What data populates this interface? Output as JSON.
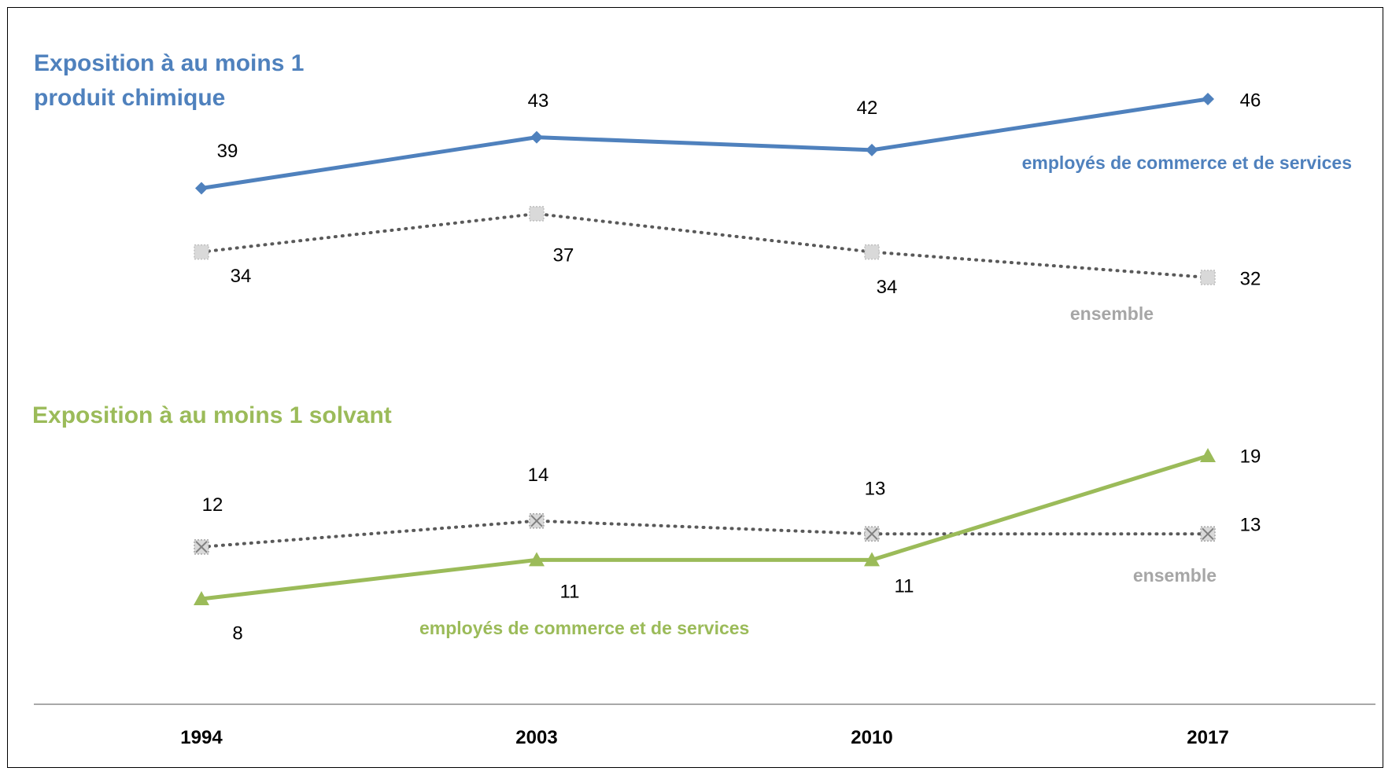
{
  "chart_data": {
    "type": "line",
    "x": [
      "1994",
      "2003",
      "2010",
      "2017"
    ],
    "panels": [
      {
        "title": "Exposition à au moins 1 produit chimique",
        "title_lines": [
          "Exposition à au moins 1",
          "produit chimique"
        ],
        "title_color": "#4F81BD",
        "series": [
          {
            "name": "employés de commerce et de services",
            "values": [
              39,
              43,
              42,
              46
            ],
            "color": "#4F81BD",
            "line_style": "solid",
            "marker": "diamond"
          },
          {
            "name": "ensemble",
            "values": [
              34,
              37,
              34,
              32
            ],
            "color": "#A6A6A6",
            "line_style": "dotted",
            "marker": "square"
          }
        ]
      },
      {
        "title": "Exposition à au moins 1 solvant",
        "title_lines": [
          "Exposition à au moins 1 solvant"
        ],
        "title_color": "#9BBB59",
        "series": [
          {
            "name": "ensemble",
            "values": [
              12,
              14,
              13,
              13
            ],
            "color": "#A6A6A6",
            "line_style": "dotted",
            "marker": "square-x"
          },
          {
            "name": "employés de commerce et de services",
            "values": [
              8,
              11,
              11,
              19
            ],
            "color": "#9BBB59",
            "line_style": "solid",
            "marker": "triangle"
          }
        ]
      }
    ]
  }
}
